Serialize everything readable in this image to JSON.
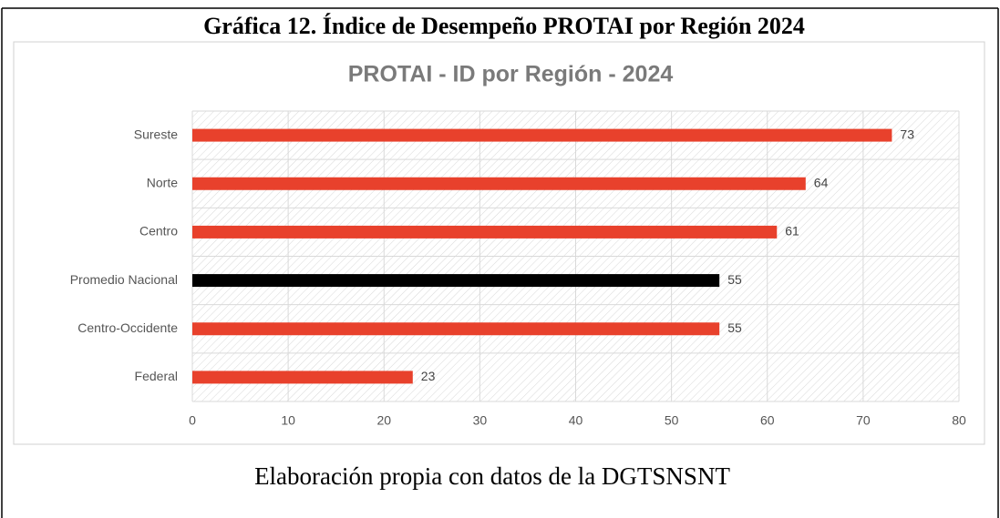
{
  "heading": "Gráfica 12. Índice de Desempeño PROTAI por Región 2024",
  "caption": "Elaboración propia con datos de la DGTSNSNT",
  "chart_data": {
    "type": "bar",
    "orientation": "horizontal",
    "title": "PROTAI - ID por Región - 2024",
    "categories": [
      "Sureste",
      "Norte",
      "Centro",
      "Promedio Nacional",
      "Centro-Occidente",
      "Federal"
    ],
    "values": [
      73,
      64,
      61,
      55,
      55,
      23
    ],
    "colors": [
      "#e8412c",
      "#e8412c",
      "#e8412c",
      "#000000",
      "#e8412c",
      "#e8412c"
    ],
    "xlim": [
      0,
      80
    ],
    "xticks": [
      0,
      10,
      20,
      30,
      40,
      50,
      60,
      70,
      80
    ],
    "grid": true
  }
}
